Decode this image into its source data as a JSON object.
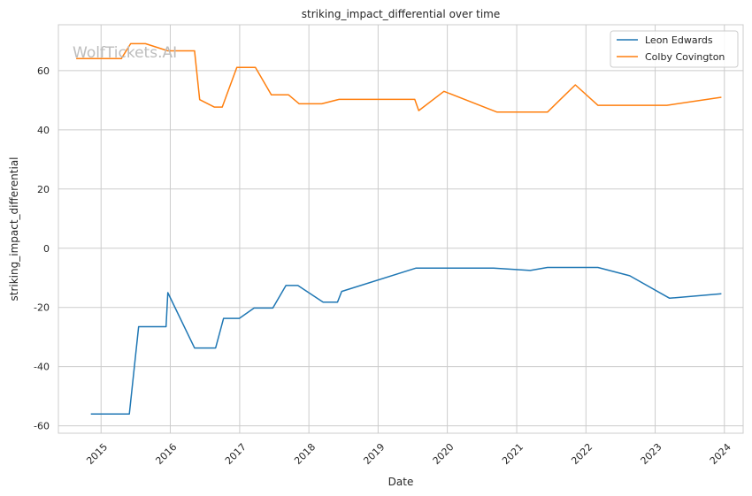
{
  "chart_data": {
    "type": "line",
    "title": "striking_impact_differential over time",
    "xlabel": "Date",
    "ylabel": "striking_impact_differential",
    "watermark": "WolfTickets.AI",
    "xlim": [
      "2014-05-21",
      "2024-04-09"
    ],
    "ylim": [
      -62.5,
      75.5
    ],
    "x_ticks": [
      "2015",
      "2016",
      "2017",
      "2018",
      "2019",
      "2020",
      "2021",
      "2022",
      "2023",
      "2024"
    ],
    "y_ticks": [
      -60,
      -40,
      -20,
      0,
      20,
      40,
      60
    ],
    "grid": true,
    "legend_position": "top-right",
    "series": [
      {
        "name": "Leon Edwards",
        "color": "#1f77b4",
        "points": [
          [
            "2014-11-08",
            -56.0
          ],
          [
            "2015-05-30",
            -56.0
          ],
          [
            "2015-07-18",
            -26.5
          ],
          [
            "2015-12-10",
            -26.5
          ],
          [
            "2015-12-19",
            -15.0
          ],
          [
            "2016-05-08",
            -33.7
          ],
          [
            "2016-08-27",
            -33.7
          ],
          [
            "2016-10-08",
            -23.7
          ],
          [
            "2016-12-30",
            -23.7
          ],
          [
            "2017-03-18",
            -20.2
          ],
          [
            "2017-06-25",
            -20.2
          ],
          [
            "2017-09-02",
            -12.6
          ],
          [
            "2017-11-04",
            -12.6
          ],
          [
            "2018-03-17",
            -18.2
          ],
          [
            "2018-06-01",
            -18.2
          ],
          [
            "2018-06-23",
            -14.6
          ],
          [
            "2019-07-20",
            -6.7
          ],
          [
            "2020-09-01",
            -6.7
          ],
          [
            "2021-03-13",
            -7.5
          ],
          [
            "2021-06-12",
            -6.5
          ],
          [
            "2022-03-05",
            -6.5
          ],
          [
            "2022-08-20",
            -9.3
          ],
          [
            "2023-03-18",
            -16.9
          ],
          [
            "2023-12-16",
            -15.4
          ]
        ]
      },
      {
        "name": "Colby Covington",
        "color": "#ff7f0e",
        "points": [
          [
            "2014-08-23",
            64.1
          ],
          [
            "2015-04-18",
            64.1
          ],
          [
            "2015-06-06",
            69.1
          ],
          [
            "2015-08-23",
            69.1
          ],
          [
            "2015-12-19",
            66.7
          ],
          [
            "2016-05-08",
            66.7
          ],
          [
            "2016-06-04",
            50.2
          ],
          [
            "2016-08-20",
            47.7
          ],
          [
            "2016-10-01",
            47.7
          ],
          [
            "2016-12-17",
            61.1
          ],
          [
            "2017-03-25",
            61.1
          ],
          [
            "2017-06-17",
            51.8
          ],
          [
            "2017-09-16",
            51.8
          ],
          [
            "2017-11-11",
            48.8
          ],
          [
            "2018-03-10",
            48.8
          ],
          [
            "2018-06-09",
            50.3
          ],
          [
            "2019-07-13",
            50.3
          ],
          [
            "2019-08-03",
            46.5
          ],
          [
            "2019-12-14",
            53.0
          ],
          [
            "2020-09-19",
            46.0
          ],
          [
            "2021-06-12",
            46.0
          ],
          [
            "2021-11-06",
            55.2
          ],
          [
            "2022-03-05",
            48.3
          ],
          [
            "2023-03-04",
            48.3
          ],
          [
            "2023-12-16",
            51.0
          ]
        ]
      }
    ]
  }
}
